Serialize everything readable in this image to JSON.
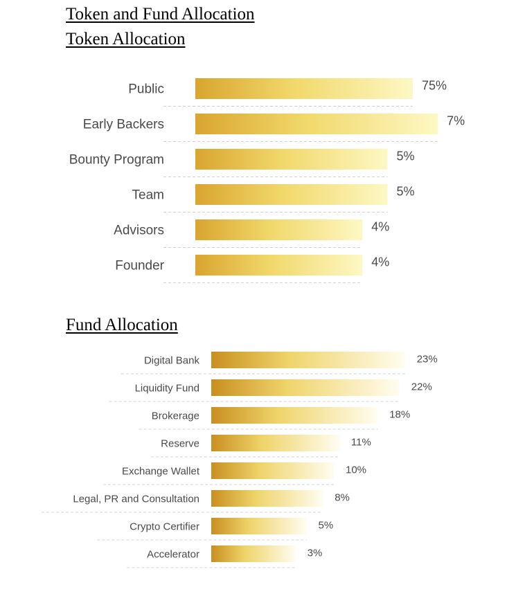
{
  "title": "Token and Fund Allocation",
  "chart_data": [
    {
      "type": "bar",
      "orientation": "horizontal",
      "title": "Token Allocation",
      "categories": [
        "Public",
        "Early Backers",
        "Bounty Program",
        "Team",
        "Advisors",
        "Founder"
      ],
      "values": [
        75,
        7,
        5,
        5,
        4,
        4
      ],
      "value_labels": [
        "75%",
        "7%",
        "5%",
        "5%",
        "4%",
        "4%"
      ],
      "unit": "%",
      "bar_gradient": [
        "#d9a52f",
        "#f1d86a",
        "#fdf8c4"
      ]
    },
    {
      "type": "bar",
      "orientation": "horizontal",
      "title": "Fund Allocation",
      "categories": [
        "Digital Bank",
        "Liquidity Fund",
        "Brokerage",
        "Reserve",
        "Exchange Wallet",
        "Legal, PR and Consultation",
        "Crypto Certifier",
        "Accelerator"
      ],
      "values": [
        23,
        22,
        18,
        11,
        10,
        8,
        5,
        3
      ],
      "value_labels": [
        "23%",
        "22%",
        "18%",
        "11%",
        "10%",
        "8%",
        "5%",
        "3%"
      ],
      "unit": "%",
      "bar_gradient": [
        "#c98f1f",
        "#efd46a",
        "#fffdf0"
      ]
    }
  ]
}
